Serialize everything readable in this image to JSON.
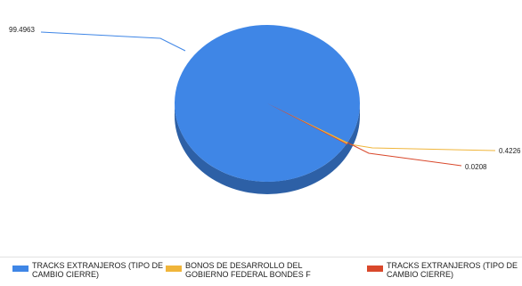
{
  "chart_data": {
    "type": "pie",
    "slices": [
      {
        "label": "TRACKS EXTRANJEROS (TIPO DE CAMBIO CIERRE)",
        "value": 99.4963,
        "value_label": "99.4963",
        "color": "#3f86e6"
      },
      {
        "label": "BONOS DE DESARROLLO DEL GOBIERNO FEDERAL BONDES F",
        "value": 0.4226,
        "value_label": "0.4226",
        "color": "#f0b53a"
      },
      {
        "label": "TRACKS EXTRANJEROS (TIPO DE CAMBIO CIERRE)",
        "value": 0.0208,
        "value_label": "0.0208",
        "color": "#d9482b"
      }
    ],
    "style": "3d",
    "legend_position": "bottom"
  }
}
